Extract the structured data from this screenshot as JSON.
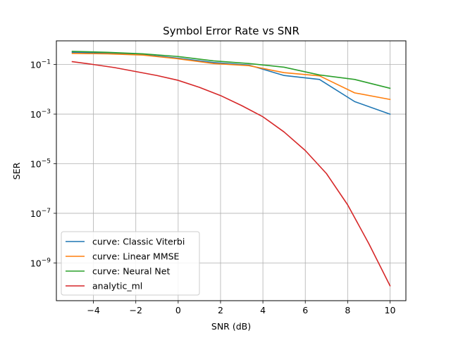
{
  "chart_data": {
    "type": "line",
    "title": "Symbol Error Rate vs SNR",
    "xlabel": "SNR (dB)",
    "ylabel": "SER",
    "xscale": "linear",
    "yscale": "log",
    "xlim": [
      -5.75,
      10.75
    ],
    "ylim": [
      3e-11,
      0.9
    ],
    "xticks": [
      -4,
      -2,
      0,
      2,
      4,
      6,
      8,
      10
    ],
    "xtick_labels": [
      "−4",
      "−2",
      "0",
      "2",
      "4",
      "6",
      "8",
      "10"
    ],
    "yticks": [
      1e-09,
      1e-07,
      1e-05,
      0.001,
      0.1
    ],
    "ytick_labels": [
      {
        "base": "10",
        "exp": "−9"
      },
      {
        "base": "10",
        "exp": "−7"
      },
      {
        "base": "10",
        "exp": "−5"
      },
      {
        "base": "10",
        "exp": "−3"
      },
      {
        "base": "10",
        "exp": "−1"
      }
    ],
    "grid": true,
    "legend_position": "lower-left",
    "series": [
      {
        "name": "curve: Classic Viterbi",
        "color": "#1f77b4",
        "x": [
          -5,
          -3.33,
          -1.67,
          0,
          1.67,
          3.33,
          5,
          6.67,
          8.33,
          10
        ],
        "y": [
          0.31,
          0.29,
          0.25,
          0.18,
          0.12,
          0.095,
          0.036,
          0.025,
          0.0032,
          0.001
        ]
      },
      {
        "name": "curve: Linear MMSE",
        "color": "#ff7f0e",
        "x": [
          -5,
          -3.33,
          -1.67,
          0,
          1.67,
          3.33,
          5,
          6.67,
          8.33,
          10
        ],
        "y": [
          0.28,
          0.27,
          0.24,
          0.17,
          0.11,
          0.09,
          0.047,
          0.035,
          0.0072,
          0.0039
        ]
      },
      {
        "name": "curve: Neural Net",
        "color": "#2ca02c",
        "x": [
          -5,
          -3.33,
          -1.67,
          0,
          1.67,
          3.33,
          5,
          6.67,
          8.33,
          10
        ],
        "y": [
          0.34,
          0.31,
          0.27,
          0.21,
          0.14,
          0.11,
          0.078,
          0.038,
          0.025,
          0.011
        ]
      },
      {
        "name": "analytic_ml",
        "color": "#d62728",
        "x": [
          -5,
          -4,
          -3,
          -2,
          -1,
          0,
          1,
          2,
          3,
          4,
          5,
          6,
          7,
          8,
          9,
          10
        ],
        "y": [
          0.13,
          0.1,
          0.075,
          0.052,
          0.036,
          0.023,
          0.012,
          0.0056,
          0.0022,
          0.00078,
          0.00019,
          3.4e-05,
          4e-06,
          2.2e-07,
          6e-09,
          1.2e-10
        ]
      }
    ]
  }
}
